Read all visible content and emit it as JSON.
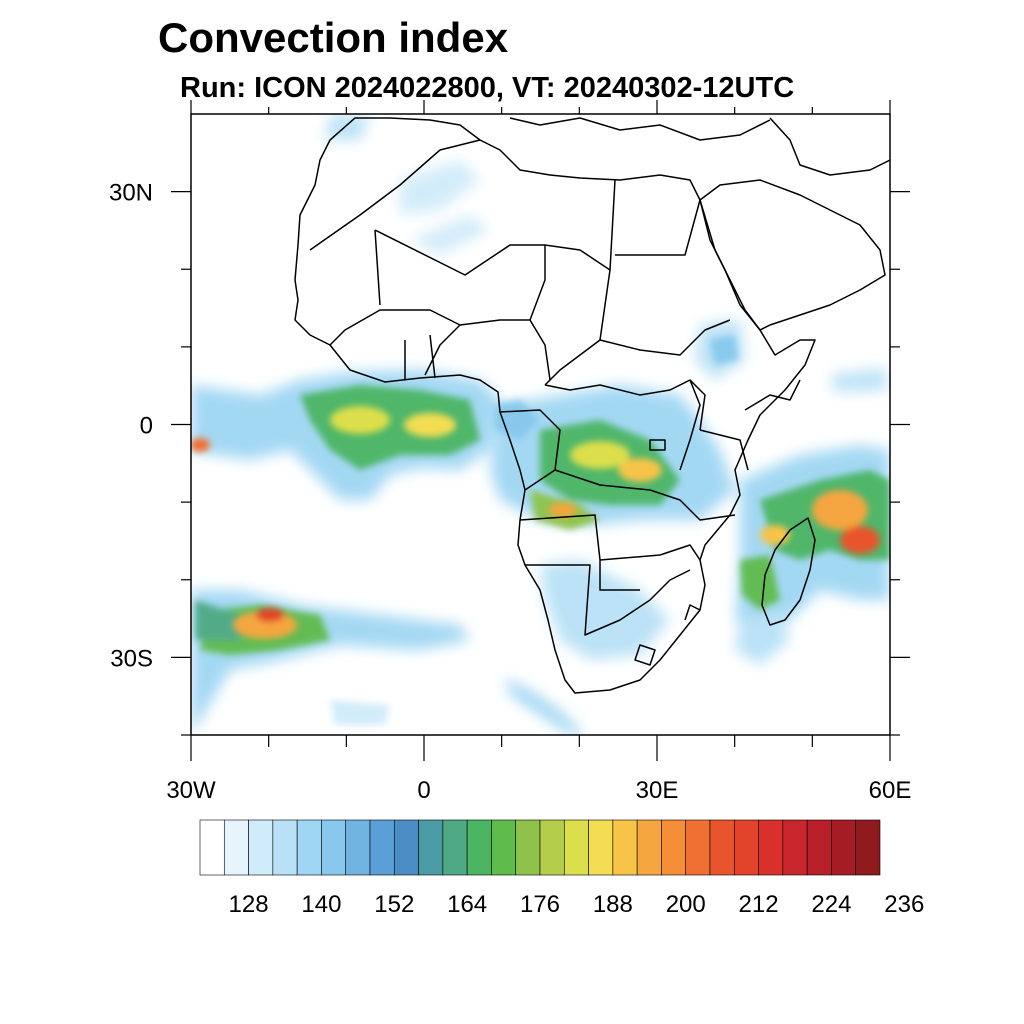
{
  "title": "Convection index",
  "subtitle": "Run: ICON 2024022800,  VT: 20240302-12UTC",
  "map": {
    "projection": "lat-lon",
    "lon_range": [
      -30,
      60
    ],
    "lat_range": [
      -40,
      40
    ],
    "lon_ticks": [
      {
        "value": -30,
        "label": "30W"
      },
      {
        "value": 0,
        "label": "0"
      },
      {
        "value": 30,
        "label": "30E"
      },
      {
        "value": 60,
        "label": "60E"
      }
    ],
    "lat_ticks": [
      {
        "value": 30,
        "label": "30N"
      },
      {
        "value": 0,
        "label": "0"
      },
      {
        "value": -30,
        "label": "30S"
      }
    ],
    "minor_lon_ticks": [
      -20,
      -10,
      10,
      20,
      40,
      50
    ],
    "minor_lat_ticks": [
      20,
      10,
      -10,
      -20,
      -40
    ]
  },
  "colorbar": {
    "colors": [
      "#ffffff",
      "#e6f4fc",
      "#d0ebf9",
      "#b8e1f6",
      "#9fd6f3",
      "#87c8ec",
      "#70b5e2",
      "#5a9fd6",
      "#4a8ec5",
      "#4b9ba4",
      "#4ea984",
      "#4cb564",
      "#5fbb4b",
      "#8ec24a",
      "#b4cd4a",
      "#dcdf4c",
      "#f3dd52",
      "#f7c448",
      "#f6a63f",
      "#f48f38",
      "#ef7030",
      "#e8552c",
      "#e3432b",
      "#d9302b",
      "#c9252c",
      "#b81f2a",
      "#a51c24",
      "#8f1b1f"
    ],
    "tick_labels": [
      "128",
      "140",
      "152",
      "164",
      "176",
      "188",
      "200",
      "212",
      "224",
      "236"
    ],
    "label_start_index": 2,
    "label_every": 3
  }
}
